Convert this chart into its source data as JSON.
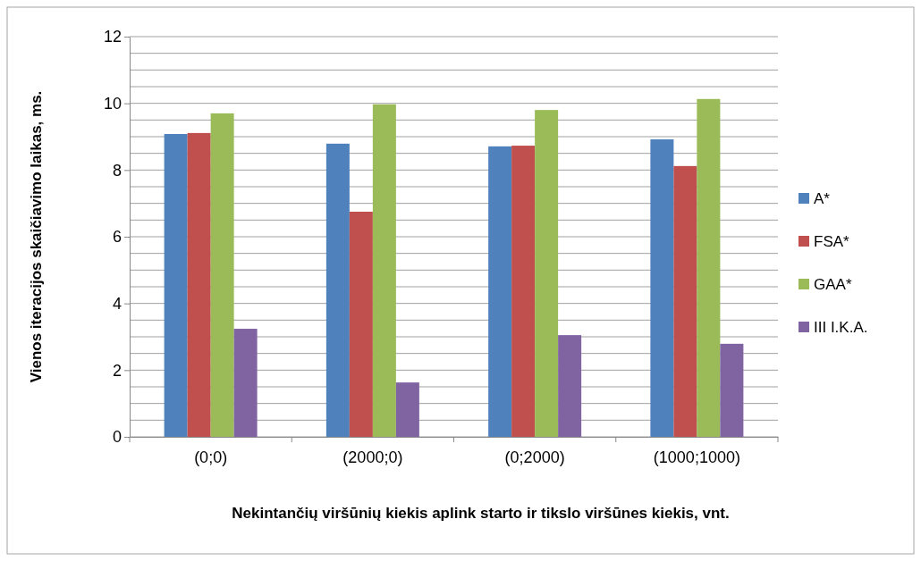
{
  "chart_data": {
    "type": "bar",
    "xlabel": "Nekintančių viršūnių kiekis aplink starto ir tikslo viršūnes kiekis, vnt.",
    "ylabel": "Vienos iteracijos skaičiavimo laikas, ms.",
    "categories": [
      "(0;0)",
      "(2000;0)",
      "(0;2000)",
      "(1000;1000)"
    ],
    "series": [
      {
        "name": "A*",
        "color": "#4f81bd",
        "values": [
          9.08,
          8.79,
          8.71,
          8.92
        ]
      },
      {
        "name": "FSA*",
        "color": "#c0504d",
        "values": [
          9.11,
          6.75,
          8.73,
          8.12
        ]
      },
      {
        "name": "GAA*",
        "color": "#9bbb59",
        "values": [
          9.7,
          9.97,
          9.8,
          10.13
        ]
      },
      {
        "name": "III I.K.A.",
        "color": "#8064a2",
        "values": [
          3.24,
          1.63,
          3.05,
          2.79
        ]
      }
    ],
    "ylim": [
      0,
      12
    ],
    "yticks": [
      0,
      {
        "value": 0.5,
        "label": null
      },
      {
        "value": 1,
        "label": null
      },
      {
        "value": 1.5,
        "label": null
      },
      2,
      {
        "value": 2.5,
        "label": null
      },
      {
        "value": 3,
        "label": null
      },
      {
        "value": 3.5,
        "label": null
      },
      4,
      {
        "value": 4.5,
        "label": null
      },
      {
        "value": 5,
        "label": null
      },
      {
        "value": 5.5,
        "label": null
      },
      6,
      {
        "value": 6.5,
        "label": null
      },
      {
        "value": 7,
        "label": null
      },
      {
        "value": 7.5,
        "label": null
      },
      8,
      {
        "value": 8.5,
        "label": null
      },
      {
        "value": 9,
        "label": null
      },
      {
        "value": 9.5,
        "label": null
      },
      10,
      {
        "value": 10.5,
        "label": null
      },
      {
        "value": 11,
        "label": null
      },
      {
        "value": 11.5,
        "label": null
      },
      12
    ],
    "grid": "y",
    "legend": "right"
  }
}
